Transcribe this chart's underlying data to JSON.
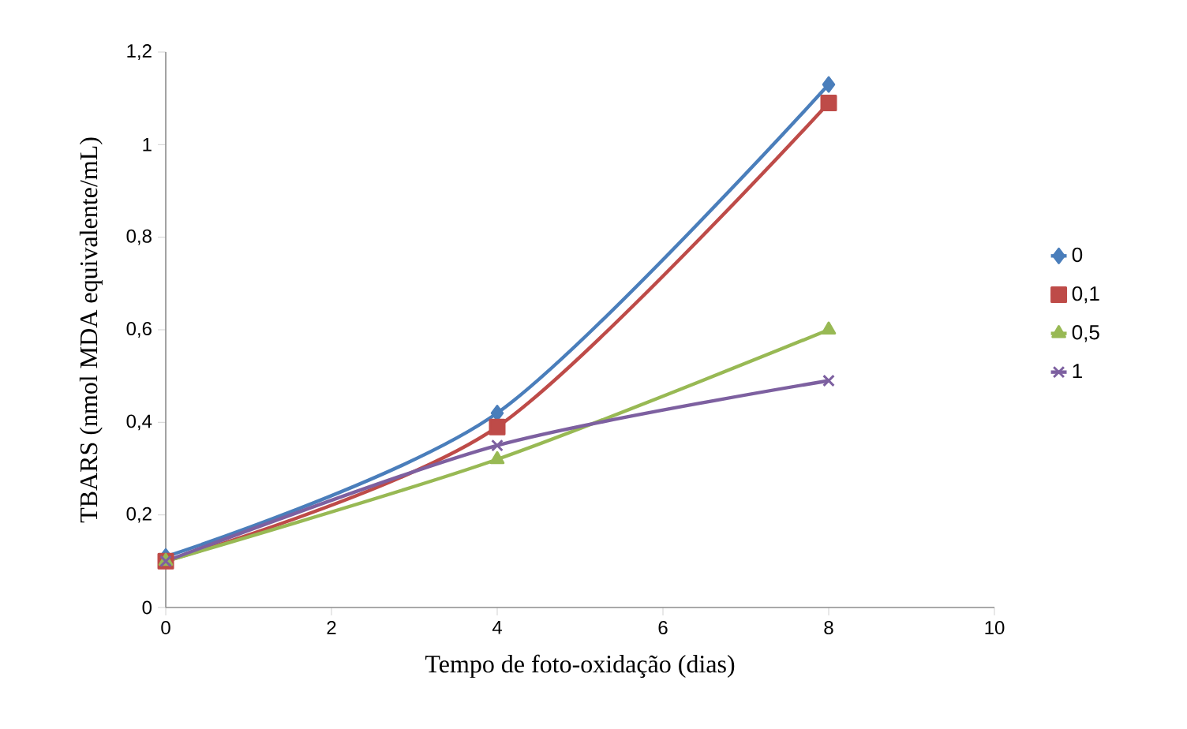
{
  "chart_data": {
    "type": "line",
    "xlabel": "Tempo de foto-oxidação (dias)",
    "ylabel": "TBARS (nmol MDA equivalente/mL)",
    "xlim": [
      0,
      10
    ],
    "xticks": [
      0,
      2,
      4,
      6,
      8,
      10
    ],
    "ylim": [
      0,
      1.2
    ],
    "yticks": [
      0,
      {
        "value": 0.2,
        "label": "0,2"
      },
      {
        "value": 0.4,
        "label": "0,4"
      },
      {
        "value": 0.6,
        "label": "0,6"
      },
      {
        "value": 0.8,
        "label": "0,8"
      },
      1,
      {
        "value": 1.2,
        "label": "1,2"
      }
    ],
    "x": [
      0,
      4,
      8
    ],
    "legend": "right",
    "grid": false,
    "line_style": "solid",
    "series": [
      {
        "name": "0",
        "color": "#4a7ebb",
        "marker": "diamond",
        "values": [
          0.11,
          0.42,
          1.13
        ]
      },
      {
        "name": "0,1",
        "color": "#be4b48",
        "marker": "square",
        "values": [
          0.1,
          0.39,
          1.09
        ]
      },
      {
        "name": "0,5",
        "color": "#98b954",
        "marker": "triangle",
        "values": [
          0.1,
          0.32,
          0.6
        ]
      },
      {
        "name": "1",
        "color": "#7d60a0",
        "marker": "cross",
        "values": [
          0.1,
          0.35,
          0.49
        ]
      }
    ]
  }
}
